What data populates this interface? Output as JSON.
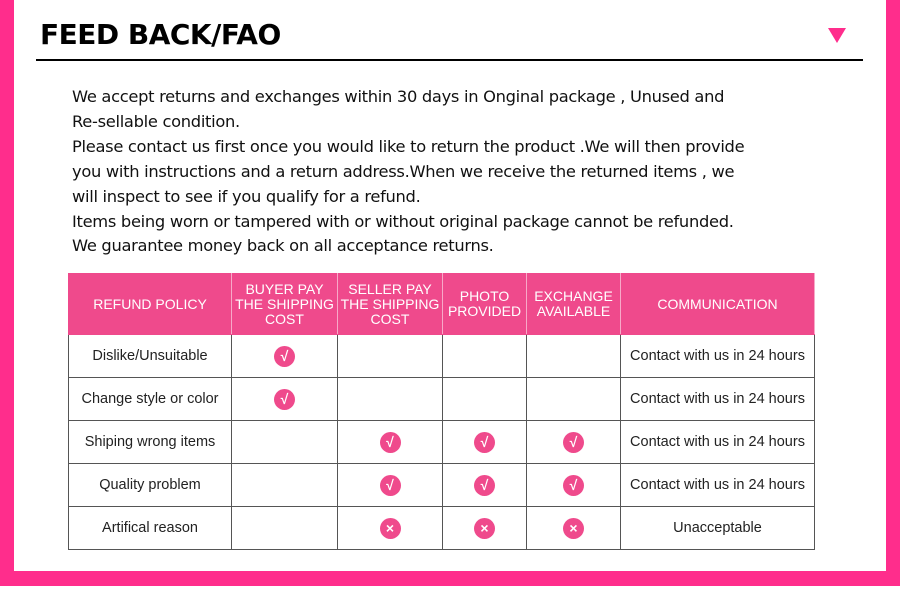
{
  "header": {
    "title": "FEED BACK/FAO",
    "dropdown_icon": "triangle-down-icon",
    "accent": "#ff2d8c"
  },
  "policy_text": [
    "We accept returns and exchanges within 30 days in Onginal package , Unused and",
    "Re-sellable condition.",
    "Please contact us first once you would like to return the product .We will then provide",
    "you with instructions and a return address.When we receive the returned items , we",
    "will inspect to see if you qualify for a refund.",
    "Items being worn or tampered with or without original package cannot be refunded.",
    "We guarantee money back on all acceptance returns."
  ],
  "table": {
    "header_color": "#ef4a8c",
    "columns": [
      "REFUND POLICY",
      "BUYER PAY\nTHE SHIPPING\nCOST",
      "SELLER PAY\nTHE SHIPPING\nCOST",
      "PHOTO\nPROVIDED",
      "EXCHANGE\nAVAILABLE",
      "COMMUNICATION"
    ],
    "rows": [
      {
        "label": "Dislike/Unsuitable",
        "marks": [
          "check",
          "",
          "",
          ""
        ],
        "communication": "Contact with us in 24 hours"
      },
      {
        "label": "Change style or color",
        "marks": [
          "check",
          "",
          "",
          ""
        ],
        "communication": "Contact with us in 24 hours"
      },
      {
        "label": "Shiping wrong items",
        "marks": [
          "",
          "check",
          "check",
          "check"
        ],
        "communication": "Contact with us in 24 hours"
      },
      {
        "label": "Quality problem",
        "marks": [
          "",
          "check",
          "check",
          "check"
        ],
        "communication": "Contact with us in 24 hours"
      },
      {
        "label": "Artifical reason",
        "marks": [
          "",
          "cross",
          "cross",
          "cross"
        ],
        "communication": "Unacceptable"
      }
    ]
  }
}
